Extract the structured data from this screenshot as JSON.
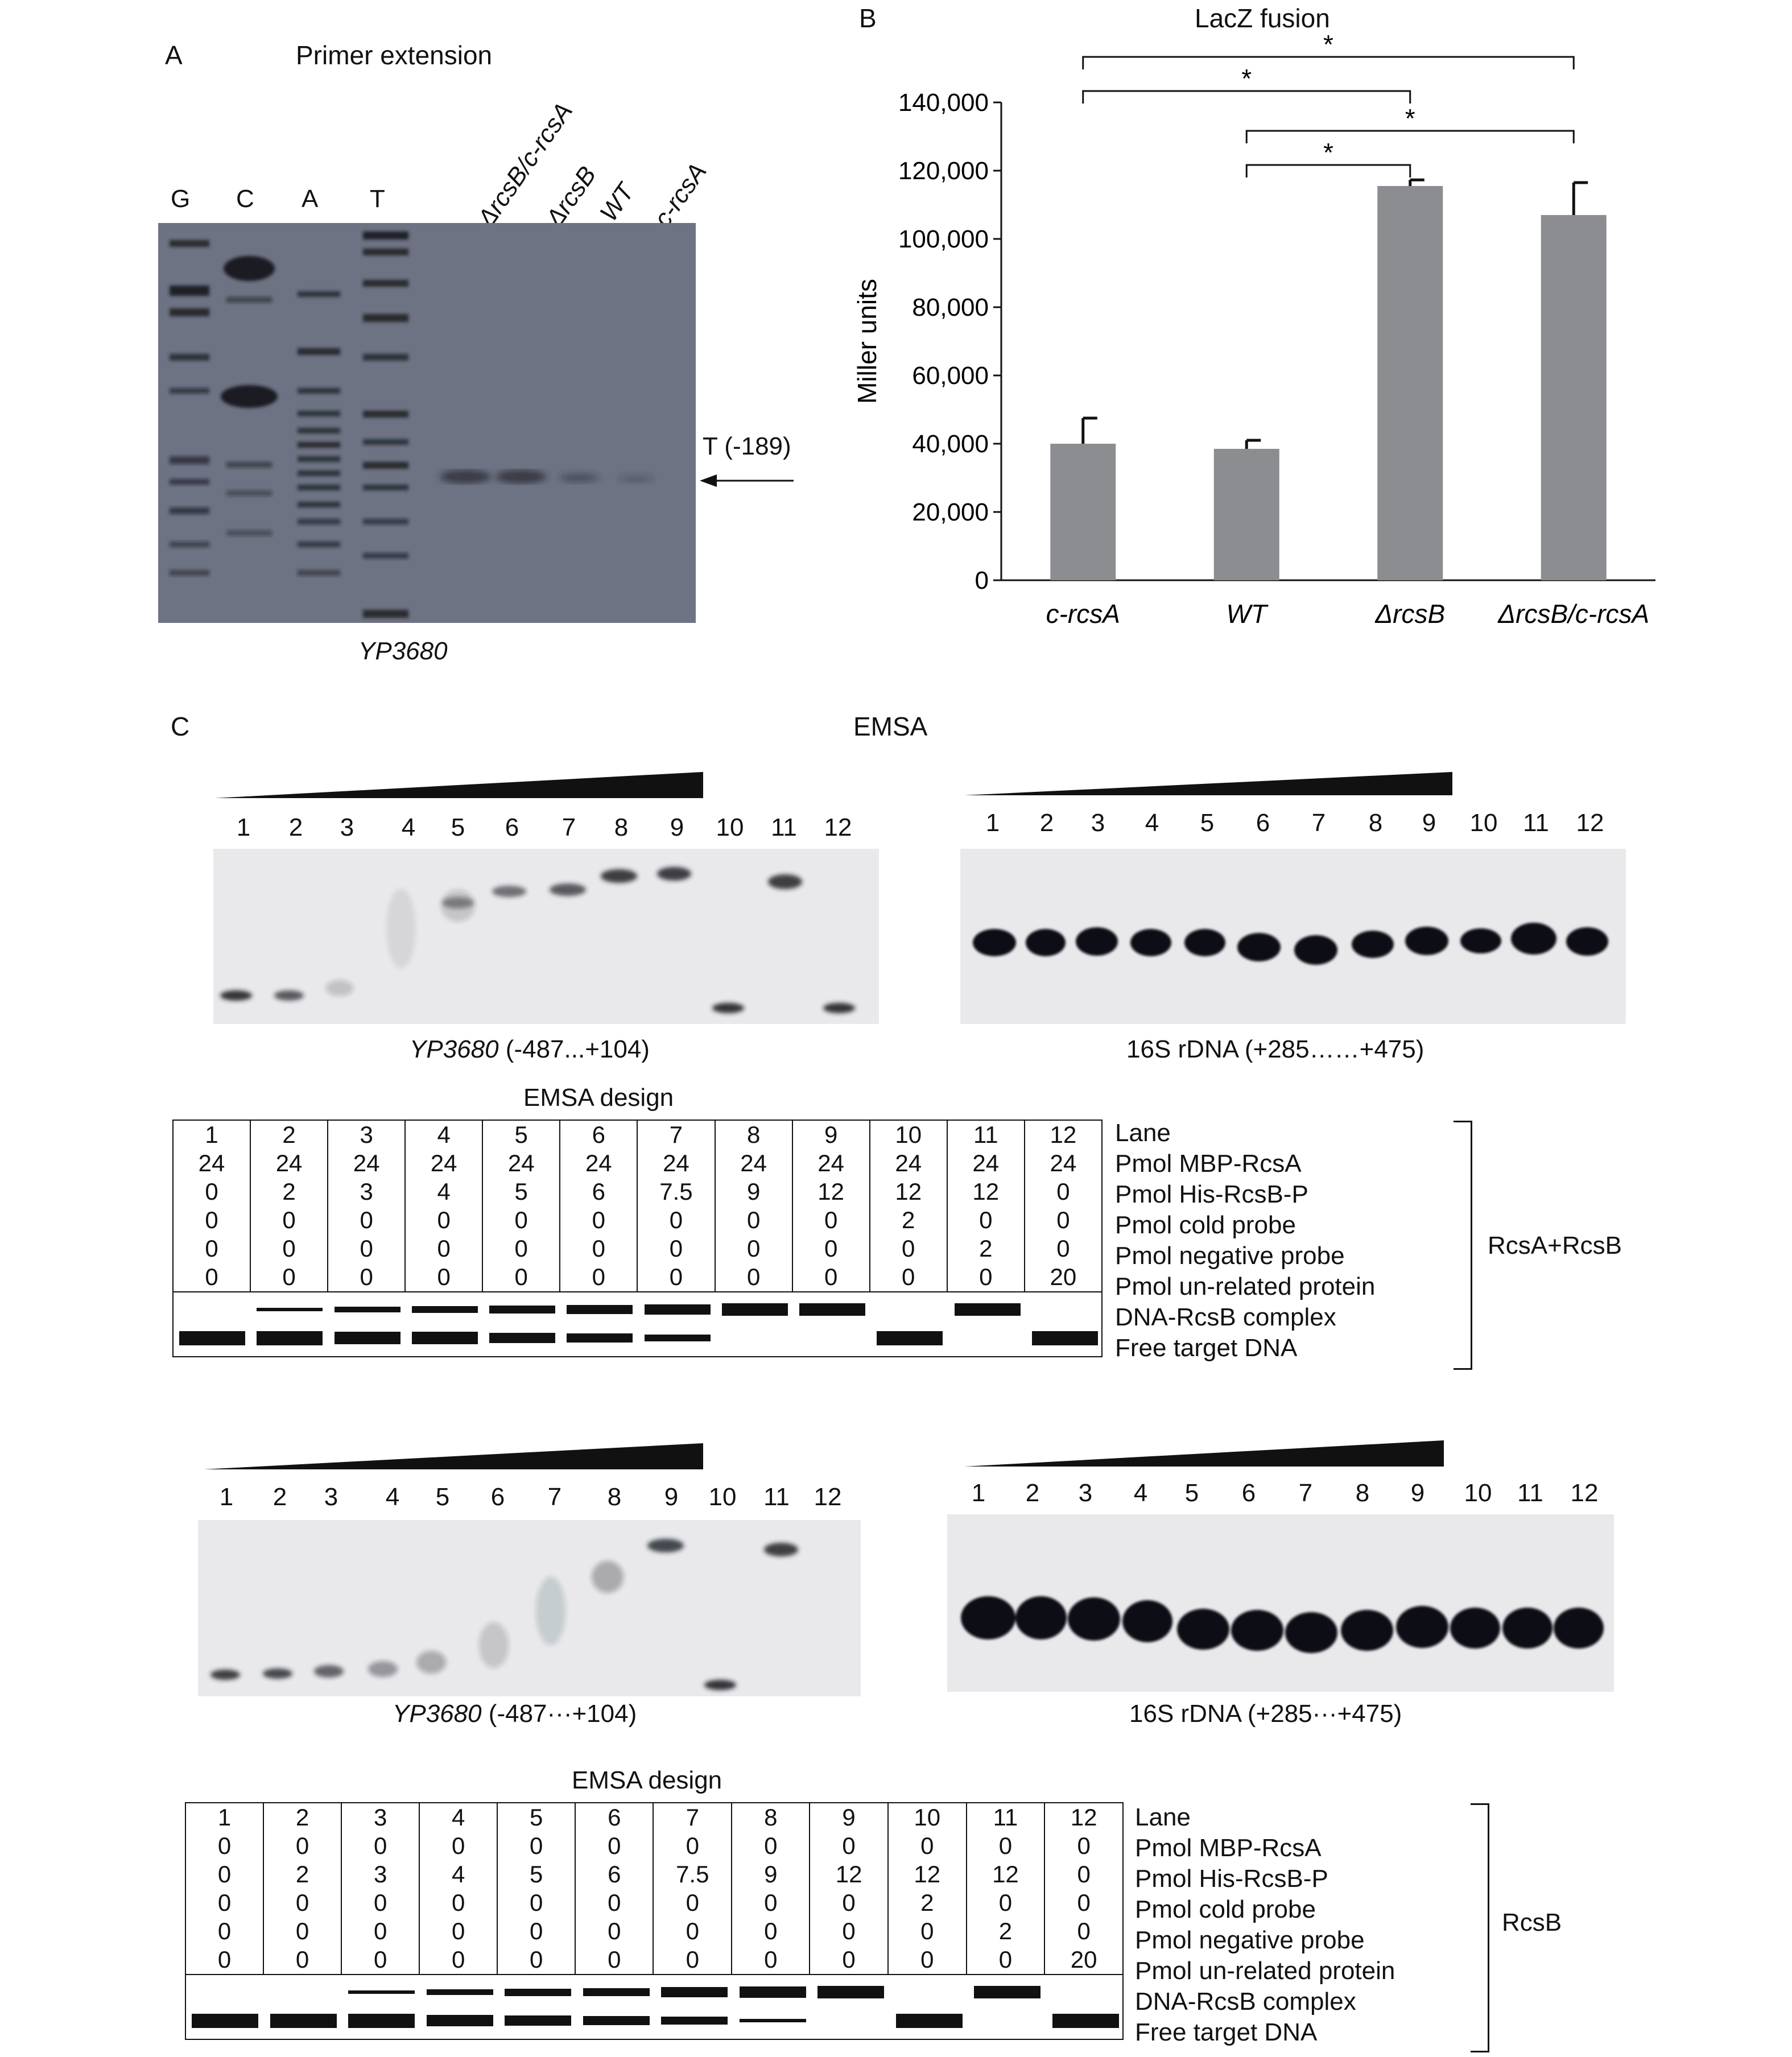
{
  "panelA": {
    "letter": "A",
    "title": "Primer extension",
    "seq_lanes": [
      "G",
      "C",
      "A",
      "T"
    ],
    "sample_lanes": [
      "ΔrcsB/c-rcsA",
      "ΔrcsB",
      "WT",
      "c-rcsA"
    ],
    "arrow_label": "T (-189)",
    "caption": "YP3680"
  },
  "panelB": {
    "letter": "B"
  },
  "chart_data": {
    "type": "bar",
    "title": "LacZ fusion",
    "ylabel": "Miller units",
    "xlabel": "",
    "categories": [
      "c-rcsA",
      "WT",
      "ΔrcsB",
      "ΔrcsB/c-rcsA"
    ],
    "values": [
      40000,
      38500,
      115500,
      107000
    ],
    "errors": [
      7500,
      2500,
      1800,
      9500
    ],
    "ylim": [
      0,
      140000
    ],
    "yticks": [
      0,
      20000,
      40000,
      60000,
      80000,
      100000,
      120000,
      140000
    ],
    "ytick_labels": [
      "0",
      "20,000",
      "40,000",
      "60,000",
      "80,000",
      "100,000",
      "120,000",
      "140,000"
    ],
    "bar_color": "#8c8d90",
    "significance": [
      {
        "from": 0,
        "to": 3,
        "label": "*"
      },
      {
        "from": 0,
        "to": 2,
        "label": "*"
      },
      {
        "from": 1,
        "to": 3,
        "label": "*"
      },
      {
        "from": 1,
        "to": 2,
        "label": "*"
      }
    ]
  },
  "panelC": {
    "letter": "C",
    "title": "EMSA",
    "lanes": [
      "1",
      "2",
      "3",
      "4",
      "5",
      "6",
      "7",
      "8",
      "9",
      "10",
      "11",
      "12"
    ],
    "gel1_caption_italic": "YP3680",
    "gel1_caption_rest": " (-487...+104)",
    "gel2_caption": "16S rDNA (+285……+475)",
    "gel3_caption_italic": "YP3680",
    "gel3_caption_rest": " (-487···+104)",
    "gel4_caption": "16S rDNA (+285···+475)"
  },
  "design1": {
    "title": "EMSA design",
    "group_label": "RcsA+RcsB",
    "rows": [
      {
        "label": "Lane",
        "values": [
          "1",
          "2",
          "3",
          "4",
          "5",
          "6",
          "7",
          "8",
          "9",
          "10",
          "11",
          "12"
        ]
      },
      {
        "label": "Pmol MBP-RcsA",
        "values": [
          "24",
          "24",
          "24",
          "24",
          "24",
          "24",
          "24",
          "24",
          "24",
          "24",
          "24",
          "24"
        ]
      },
      {
        "label": "Pmol His-RcsB-P",
        "values": [
          "0",
          "2",
          "3",
          "4",
          "5",
          "6",
          "7.5",
          "9",
          "12",
          "12",
          "12",
          "0"
        ]
      },
      {
        "label": "Pmol cold probe",
        "values": [
          "0",
          "0",
          "0",
          "0",
          "0",
          "0",
          "0",
          "0",
          "0",
          "2",
          "0",
          "0"
        ]
      },
      {
        "label": "Pmol negative probe",
        "values": [
          "0",
          "0",
          "0",
          "0",
          "0",
          "0",
          "0",
          "0",
          "0",
          "0",
          "2",
          "0"
        ]
      },
      {
        "label": "Pmol un-related protein",
        "values": [
          "0",
          "0",
          "0",
          "0",
          "0",
          "0",
          "0",
          "0",
          "0",
          "0",
          "0",
          "20"
        ]
      }
    ],
    "complex_label": "DNA-RcsB complex",
    "free_label": "Free target DNA",
    "complex_levels": [
      0,
      0.15,
      0.3,
      0.45,
      0.6,
      0.7,
      0.8,
      1,
      1,
      0,
      1,
      0
    ],
    "free_levels": [
      1,
      1,
      0.9,
      0.85,
      0.7,
      0.55,
      0.4,
      0,
      0,
      1,
      0,
      1
    ]
  },
  "design2": {
    "title": "EMSA design",
    "group_label": "RcsB",
    "rows": [
      {
        "label": "Lane",
        "values": [
          "1",
          "2",
          "3",
          "4",
          "5",
          "6",
          "7",
          "8",
          "9",
          "10",
          "11",
          "12"
        ]
      },
      {
        "label": "Pmol MBP-RcsA",
        "values": [
          "0",
          "0",
          "0",
          "0",
          "0",
          "0",
          "0",
          "0",
          "0",
          "0",
          "0",
          "0"
        ]
      },
      {
        "label": "Pmol His-RcsB-P",
        "values": [
          "0",
          "2",
          "3",
          "4",
          "5",
          "6",
          "7.5",
          "9",
          "12",
          "12",
          "12",
          "0"
        ]
      },
      {
        "label": "Pmol cold probe",
        "values": [
          "0",
          "0",
          "0",
          "0",
          "0",
          "0",
          "0",
          "0",
          "0",
          "2",
          "0",
          "0"
        ]
      },
      {
        "label": "Pmol negative probe",
        "values": [
          "0",
          "0",
          "0",
          "0",
          "0",
          "0",
          "0",
          "0",
          "0",
          "0",
          "2",
          "0"
        ]
      },
      {
        "label": "Pmol un-related protein",
        "values": [
          "0",
          "0",
          "0",
          "0",
          "0",
          "0",
          "0",
          "0",
          "0",
          "0",
          "0",
          "20"
        ]
      }
    ],
    "complex_label": "DNA-RcsB complex",
    "free_label": "Free target DNA",
    "complex_levels": [
      0,
      0,
      0.15,
      0.35,
      0.5,
      0.6,
      0.75,
      0.9,
      1,
      0,
      1,
      0
    ],
    "free_levels": [
      1,
      1,
      1,
      0.8,
      0.7,
      0.6,
      0.5,
      0.1,
      0,
      1,
      0,
      1
    ]
  }
}
